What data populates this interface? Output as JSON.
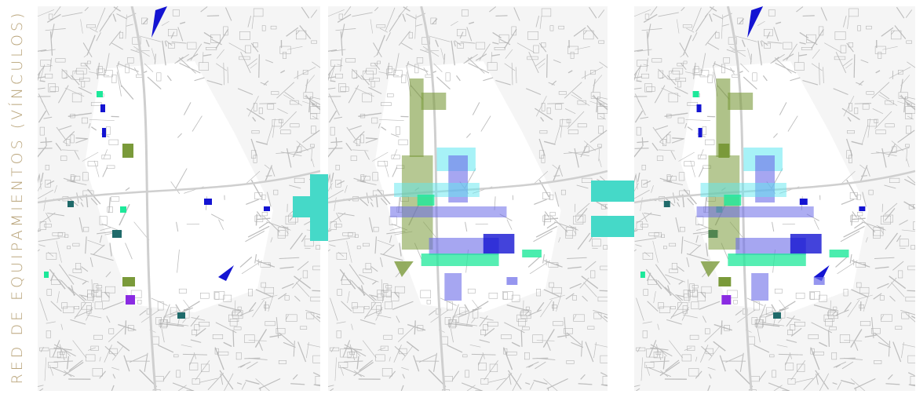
{
  "side_title": "RED DE EQUIPAMIENTOS (VÍNCULOS)",
  "operators": {
    "plus": "plus-sign",
    "equals": "equals-sign"
  },
  "colors": {
    "accent": "#45d9c8",
    "title": "#b9a47a",
    "dark_blue": "#1414d2",
    "light_blue": "#6a6ae8",
    "cyan": "#5fe8f0",
    "mint": "#1de89a",
    "olive": "#7a9a3a",
    "teal": "#1f6a6a",
    "purple": "#8a2be2",
    "map_lines": "#bdbdbd"
  },
  "maps": [
    {
      "name": "existing-facilities-map"
    },
    {
      "name": "proposed-links-map"
    },
    {
      "name": "combined-network-map"
    }
  ]
}
